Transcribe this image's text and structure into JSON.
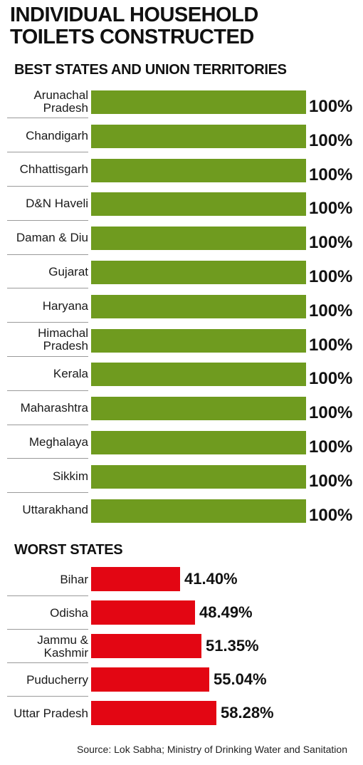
{
  "title_lines": [
    "INDIVIDUAL HOUSEHOLD",
    "TOILETS CONSTRUCTED"
  ],
  "colors": {
    "best_bar": "#6f9b1f",
    "worst_bar": "#e30613"
  },
  "chart_data": [
    {
      "type": "bar",
      "orientation": "horizontal",
      "title": "BEST STATES AND UNION TERRITORIES",
      "unit": "%",
      "xlim": [
        0,
        100
      ],
      "categories": [
        [
          "Arunachal",
          "Pradesh"
        ],
        [
          "Chandigarh"
        ],
        [
          "Chhattisgarh"
        ],
        [
          "D&N Haveli"
        ],
        [
          "Daman & Diu"
        ],
        [
          "Gujarat"
        ],
        [
          "Haryana"
        ],
        [
          "Himachal",
          "Pradesh"
        ],
        [
          "Kerala"
        ],
        [
          "Maharashtra"
        ],
        [
          "Meghalaya"
        ],
        [
          "Sikkim"
        ],
        [
          "Uttarakhand"
        ]
      ],
      "values": [
        100,
        100,
        100,
        100,
        100,
        100,
        100,
        100,
        100,
        100,
        100,
        100,
        100
      ],
      "value_labels": [
        "100%",
        "100%",
        "100%",
        "100%",
        "100%",
        "100%",
        "100%",
        "100%",
        "100%",
        "100%",
        "100%",
        "100%",
        "100%"
      ]
    },
    {
      "type": "bar",
      "orientation": "horizontal",
      "title": "WORST  STATES",
      "unit": "%",
      "xlim": [
        0,
        100
      ],
      "categories": [
        [
          "Bihar"
        ],
        [
          "Odisha"
        ],
        [
          "Jammu &",
          "Kashmir"
        ],
        [
          "Puducherry"
        ],
        [
          "Uttar Pradesh"
        ]
      ],
      "values": [
        41.4,
        48.49,
        51.35,
        55.04,
        58.28
      ],
      "value_labels": [
        "41.40%",
        "48.49%",
        "51.35%",
        "55.04%",
        "58.28%"
      ]
    }
  ],
  "source": "Source: Lok Sabha; Ministry of Drinking Water and Sanitation"
}
